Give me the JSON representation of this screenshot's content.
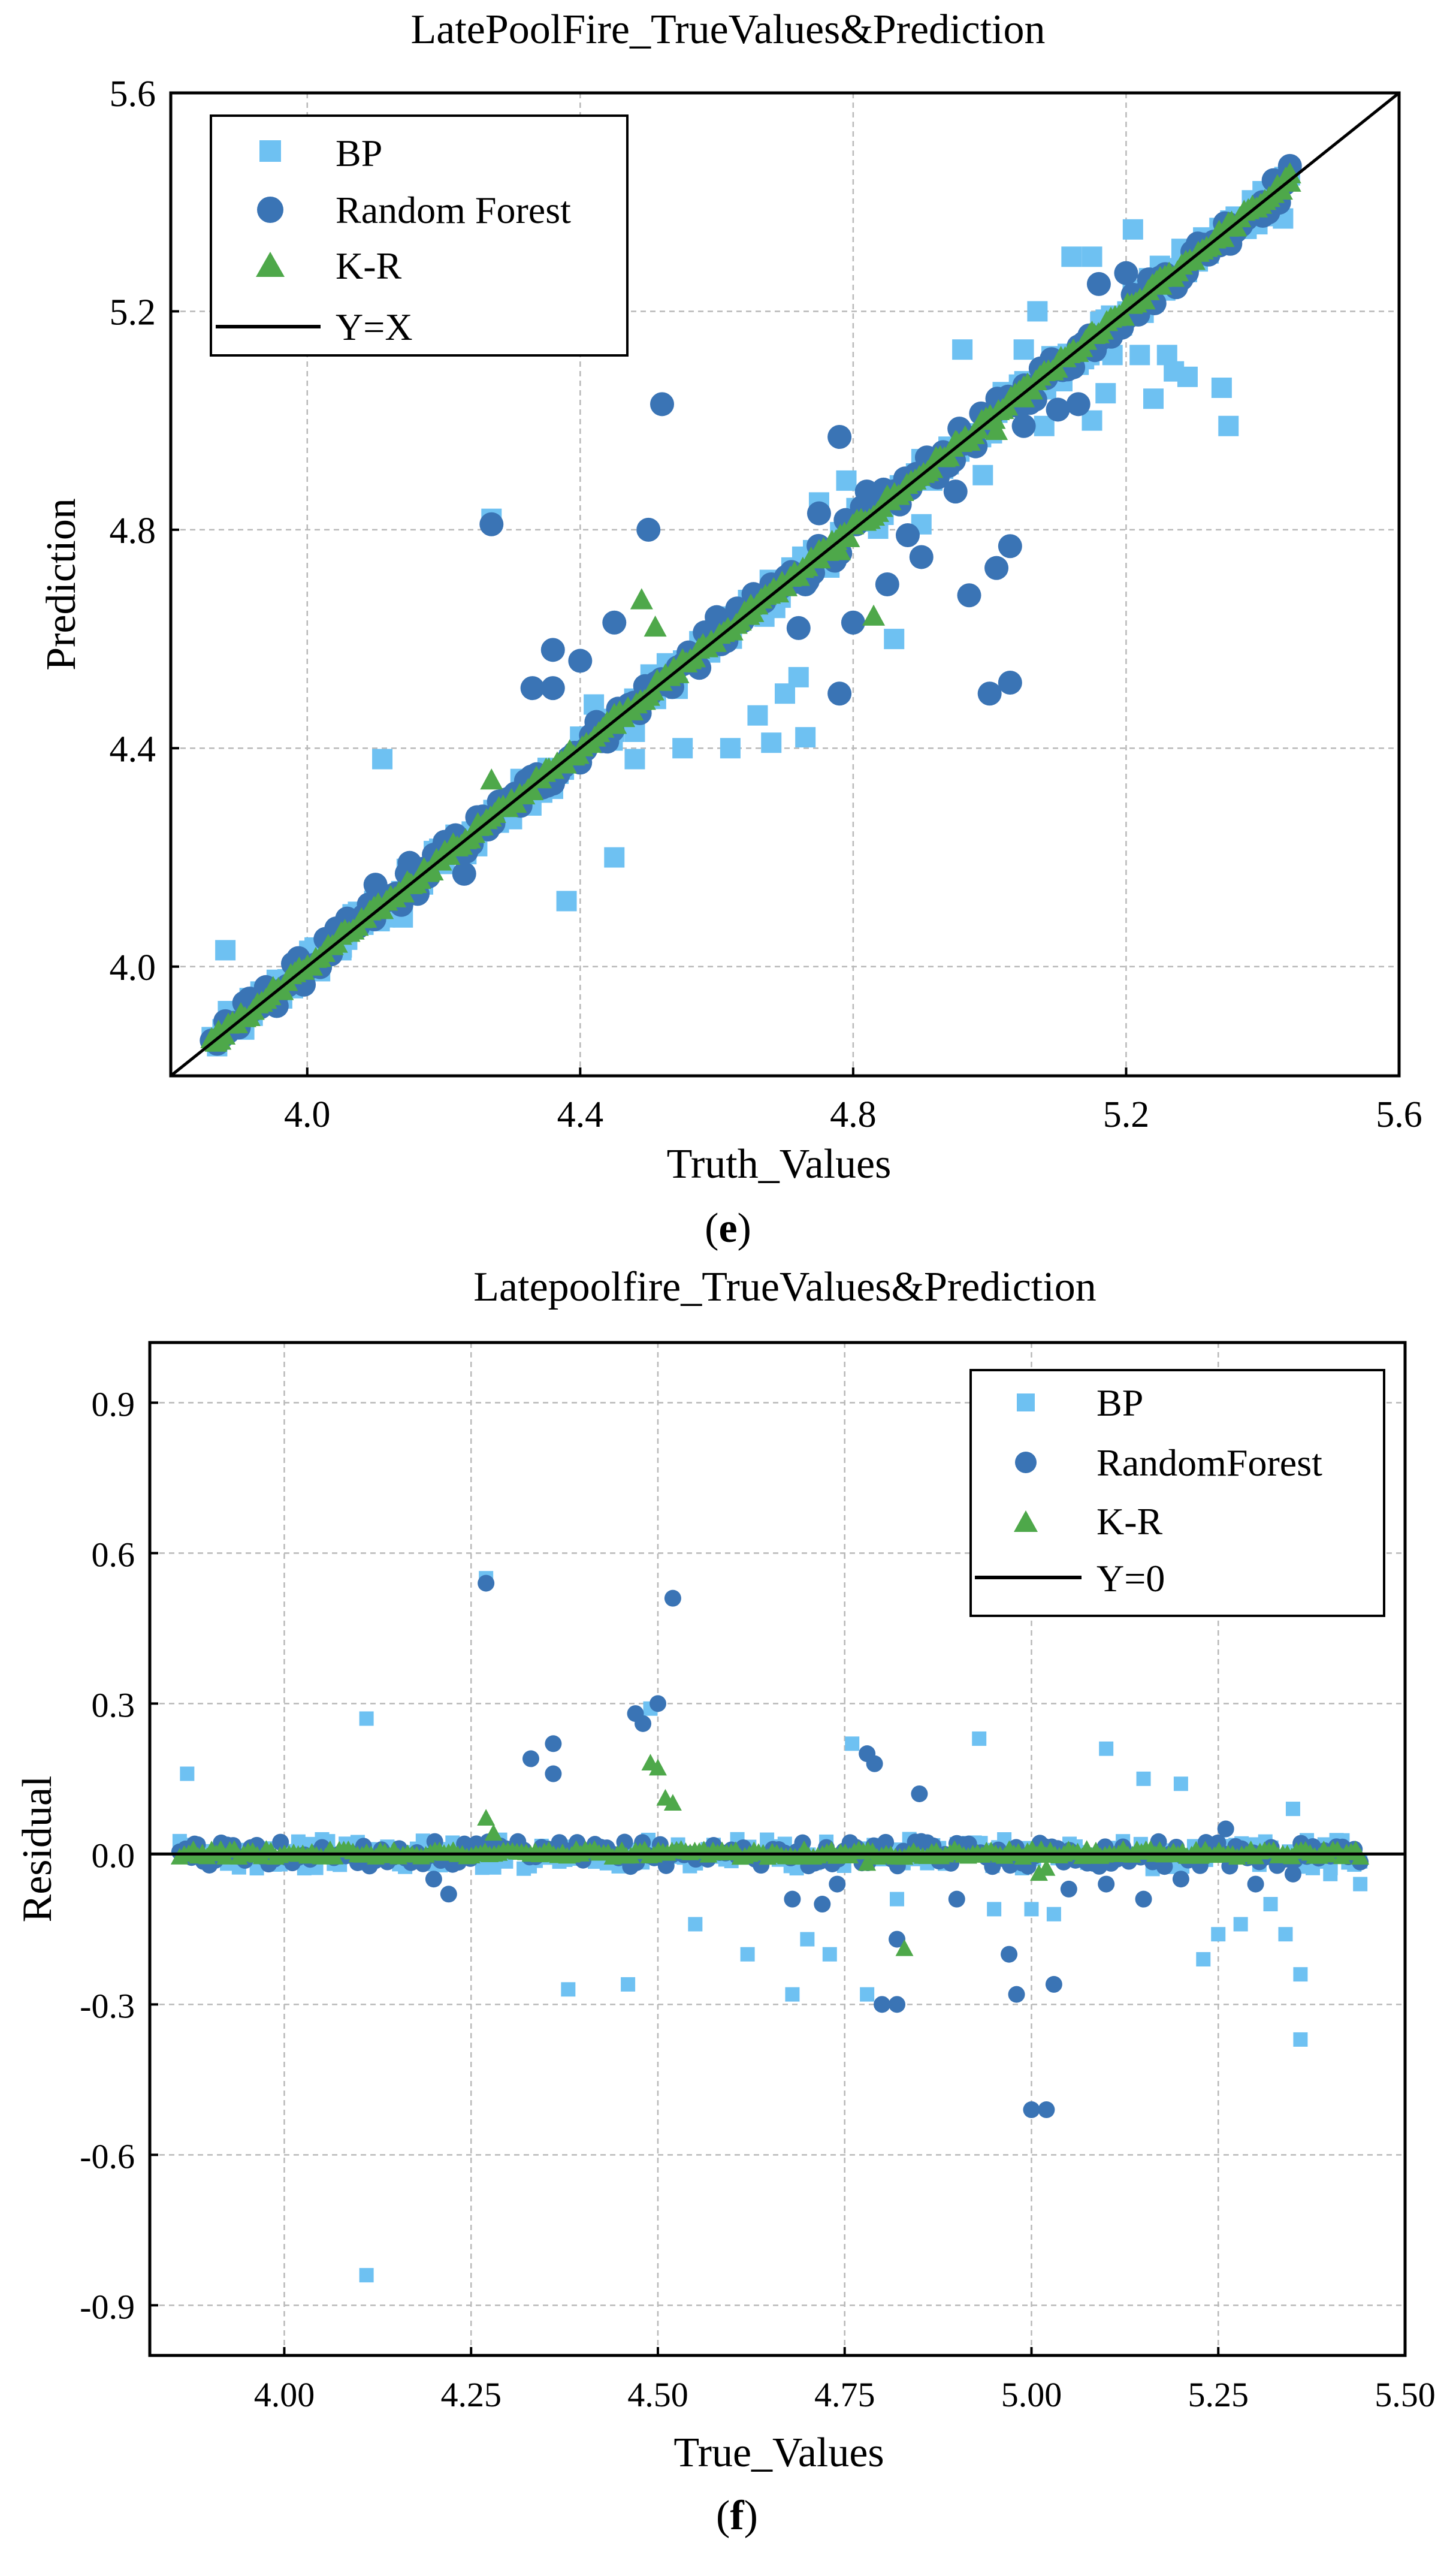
{
  "chart_data": [
    {
      "type": "scatter",
      "title": "LatePoolFire_TrueValues&Prediction",
      "xlabel": "Truth_Values",
      "ylabel": "Prediction",
      "panel_label": "e",
      "xlim": [
        3.8,
        5.6
      ],
      "ylim": [
        3.8,
        5.6
      ],
      "xticks": [
        "4.0",
        "4.4",
        "4.8",
        "5.2",
        "5.6"
      ],
      "yticks": [
        "4.0",
        "4.4",
        "4.8",
        "5.2",
        "5.6"
      ],
      "grid": true,
      "legend_position": "top-left",
      "reference_line": {
        "name": "Y=X",
        "slope": 1,
        "intercept": 0,
        "color": "#000000"
      },
      "series": [
        {
          "name": "BP",
          "marker": "square",
          "color": "#6EC1F2",
          "points": [
            [
              3.88,
              4.03
            ],
            [
              3.92,
              3.91
            ],
            [
              4.11,
              4.38
            ],
            [
              4.27,
              4.82
            ],
            [
              4.38,
              4.12
            ],
            [
              4.45,
              4.2
            ],
            [
              4.42,
              4.48
            ],
            [
              4.48,
              4.43
            ],
            [
              4.55,
              4.4
            ],
            [
              4.62,
              4.4
            ],
            [
              4.66,
              4.46
            ],
            [
              4.68,
              4.41
            ],
            [
              4.7,
              4.5
            ],
            [
              4.73,
              4.42
            ],
            [
              4.72,
              4.53
            ],
            [
              4.75,
              4.85
            ],
            [
              4.79,
              4.89
            ],
            [
              4.86,
              4.6
            ],
            [
              4.9,
              4.81
            ],
            [
              4.94,
              4.92
            ],
            [
              4.96,
              5.13
            ],
            [
              4.99,
              4.9
            ],
            [
              5.0,
              5.0
            ],
            [
              5.05,
              5.13
            ],
            [
              5.07,
              5.2
            ],
            [
              5.08,
              4.99
            ],
            [
              5.12,
              5.3
            ],
            [
              5.15,
              5.3
            ],
            [
              5.15,
              5.0
            ],
            [
              5.17,
              5.05
            ],
            [
              5.18,
              5.12
            ],
            [
              5.21,
              5.35
            ],
            [
              5.22,
              5.12
            ],
            [
              5.24,
              5.04
            ],
            [
              5.26,
              5.12
            ],
            [
              5.27,
              5.09
            ],
            [
              5.29,
              5.08
            ],
            [
              5.34,
              5.06
            ],
            [
              5.35,
              4.99
            ],
            [
              5.37,
              5.37
            ],
            [
              5.4,
              5.42
            ],
            [
              5.42,
              5.42
            ],
            [
              5.43,
              5.37
            ],
            [
              4.48,
              4.38
            ],
            [
              4.45,
              4.43
            ],
            [
              4.35,
              4.35
            ],
            [
              4.3,
              4.27
            ],
            [
              4.2,
              4.22
            ],
            [
              4.14,
              4.09
            ],
            [
              4.05,
              4.03
            ]
          ]
        },
        {
          "name": "Random Forest",
          "marker": "circle",
          "color": "#3A74B5",
          "points": [
            [
              3.88,
              3.9
            ],
            [
              3.92,
              3.92
            ],
            [
              4.06,
              4.07
            ],
            [
              4.1,
              4.15
            ],
            [
              4.15,
              4.19
            ],
            [
              4.2,
              4.22
            ],
            [
              4.23,
              4.17
            ],
            [
              4.27,
              4.81
            ],
            [
              4.33,
              4.51
            ],
            [
              4.36,
              4.58
            ],
            [
              4.36,
              4.51
            ],
            [
              4.4,
              4.56
            ],
            [
              4.45,
              4.63
            ],
            [
              4.5,
              4.8
            ],
            [
              4.52,
              5.03
            ],
            [
              4.6,
              4.64
            ],
            [
              4.68,
              4.7
            ],
            [
              4.72,
              4.62
            ],
            [
              4.73,
              4.7
            ],
            [
              4.75,
              4.83
            ],
            [
              4.78,
              4.97
            ],
            [
              4.8,
              4.63
            ],
            [
              4.78,
              4.5
            ],
            [
              4.82,
              4.87
            ],
            [
              4.85,
              4.7
            ],
            [
              4.88,
              4.79
            ],
            [
              4.9,
              4.75
            ],
            [
              4.95,
              4.87
            ],
            [
              4.97,
              4.68
            ],
            [
              5.0,
              4.5
            ],
            [
              5.01,
              4.73
            ],
            [
              5.03,
              4.52
            ],
            [
              5.03,
              4.77
            ],
            [
              5.05,
              4.99
            ],
            [
              5.1,
              5.02
            ],
            [
              5.13,
              5.03
            ],
            [
              5.16,
              5.25
            ],
            [
              5.2,
              5.27
            ],
            [
              5.22,
              5.23
            ],
            [
              5.26,
              5.26
            ],
            [
              5.3,
              5.3
            ],
            [
              5.35,
              5.36
            ],
            [
              5.4,
              5.4
            ]
          ]
        },
        {
          "name": "K-R",
          "marker": "triangle",
          "color": "#4EA84A",
          "points": [
            [
              3.87,
              3.88
            ],
            [
              3.95,
              3.96
            ],
            [
              4.05,
              4.06
            ],
            [
              4.15,
              4.15
            ],
            [
              4.25,
              4.26
            ],
            [
              4.27,
              4.34
            ],
            [
              4.35,
              4.36
            ],
            [
              4.45,
              4.46
            ],
            [
              4.49,
              4.67
            ],
            [
              4.51,
              4.62
            ],
            [
              4.55,
              4.56
            ],
            [
              4.65,
              4.66
            ],
            [
              4.75,
              4.76
            ],
            [
              4.78,
              4.76
            ],
            [
              4.83,
              4.64
            ],
            [
              4.85,
              4.86
            ],
            [
              4.95,
              4.96
            ],
            [
              5.01,
              4.98
            ],
            [
              5.05,
              5.06
            ],
            [
              5.15,
              5.16
            ],
            [
              5.25,
              5.26
            ],
            [
              5.35,
              5.36
            ],
            [
              5.44,
              5.45
            ]
          ]
        }
      ]
    },
    {
      "type": "scatter",
      "title": "Latepoolfire_TrueValues&Prediction",
      "xlabel": "True_Values",
      "ylabel": "Residual",
      "panel_label": "f",
      "xlim": [
        3.82,
        5.5
      ],
      "ylim": [
        -1.0,
        1.02
      ],
      "xticks": [
        "4.00",
        "4.25",
        "4.50",
        "4.75",
        "5.00",
        "5.25",
        "5.50"
      ],
      "yticks": [
        "0.9",
        "0.6",
        "0.3",
        "0.0",
        "-0.3",
        "-0.6",
        "-0.9"
      ],
      "grid": true,
      "legend_position": "top-right",
      "reference_line": {
        "name": "Y=0",
        "slope": 0,
        "intercept": 0,
        "color": "#000000"
      },
      "series": [
        {
          "name": "BP",
          "marker": "square",
          "color": "#6EC1F2",
          "points": [
            [
              3.87,
              0.16
            ],
            [
              4.11,
              0.27
            ],
            [
              4.11,
              -0.84
            ],
            [
              4.27,
              0.55
            ],
            [
              4.38,
              -0.27
            ],
            [
              4.46,
              -0.26
            ],
            [
              4.49,
              0.29
            ],
            [
              4.55,
              -0.14
            ],
            [
              4.62,
              -0.2
            ],
            [
              4.68,
              -0.28
            ],
            [
              4.7,
              -0.17
            ],
            [
              4.73,
              -0.2
            ],
            [
              4.76,
              0.22
            ],
            [
              4.78,
              -0.28
            ],
            [
              4.82,
              -0.09
            ],
            [
              4.93,
              0.23
            ],
            [
              4.95,
              -0.11
            ],
            [
              5.0,
              -0.11
            ],
            [
              5.03,
              -0.12
            ],
            [
              5.1,
              0.21
            ],
            [
              5.15,
              0.15
            ],
            [
              5.2,
              0.14
            ],
            [
              5.23,
              -0.21
            ],
            [
              5.25,
              -0.16
            ],
            [
              5.28,
              -0.14
            ],
            [
              5.32,
              -0.1
            ],
            [
              5.34,
              -0.16
            ],
            [
              5.35,
              0.09
            ],
            [
              5.36,
              -0.37
            ],
            [
              5.36,
              -0.24
            ],
            [
              5.4,
              -0.04
            ],
            [
              5.44,
              -0.06
            ]
          ]
        },
        {
          "name": "RandomForest",
          "marker": "circle",
          "color": "#3A74B5",
          "points": [
            [
              3.88,
              0.02
            ],
            [
              4.2,
              -0.05
            ],
            [
              4.22,
              -0.08
            ],
            [
              4.27,
              0.54
            ],
            [
              4.33,
              0.19
            ],
            [
              4.36,
              0.22
            ],
            [
              4.36,
              0.16
            ],
            [
              4.47,
              0.28
            ],
            [
              4.48,
              0.26
            ],
            [
              4.5,
              0.3
            ],
            [
              4.52,
              0.51
            ],
            [
              4.68,
              -0.09
            ],
            [
              4.72,
              -0.1
            ],
            [
              4.74,
              -0.06
            ],
            [
              4.78,
              0.2
            ],
            [
              4.79,
              0.18
            ],
            [
              4.8,
              -0.3
            ],
            [
              4.82,
              -0.17
            ],
            [
              4.82,
              -0.3
            ],
            [
              4.85,
              0.12
            ],
            [
              4.9,
              -0.09
            ],
            [
              4.97,
              -0.2
            ],
            [
              4.98,
              -0.28
            ],
            [
              5.0,
              -0.51
            ],
            [
              5.02,
              -0.51
            ],
            [
              5.03,
              -0.26
            ],
            [
              5.05,
              -0.07
            ],
            [
              5.1,
              -0.06
            ],
            [
              5.15,
              -0.09
            ],
            [
              5.2,
              -0.05
            ],
            [
              5.26,
              0.05
            ],
            [
              5.3,
              -0.06
            ],
            [
              5.35,
              -0.04
            ]
          ]
        },
        {
          "name": "K-R",
          "marker": "triangle",
          "color": "#4EA84A",
          "points": [
            [
              4.27,
              0.07
            ],
            [
              4.28,
              0.04
            ],
            [
              4.49,
              0.18
            ],
            [
              4.5,
              0.17
            ],
            [
              4.51,
              0.11
            ],
            [
              4.52,
              0.1
            ],
            [
              4.78,
              -0.02
            ],
            [
              4.83,
              -0.19
            ],
            [
              5.01,
              -0.04
            ],
            [
              5.02,
              -0.03
            ]
          ]
        }
      ]
    }
  ]
}
